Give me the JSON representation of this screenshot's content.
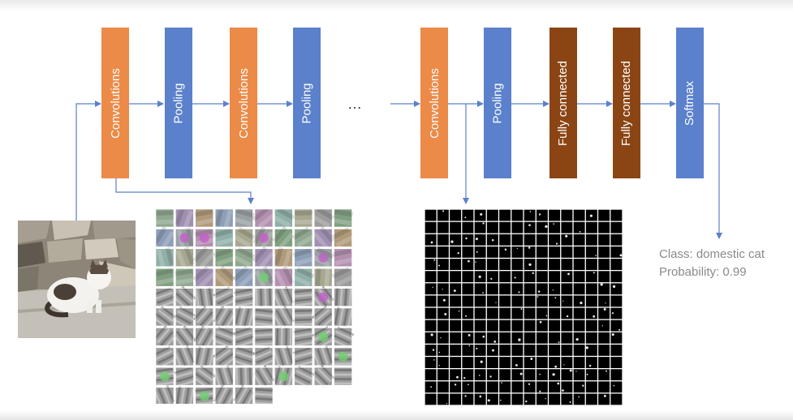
{
  "layers": [
    {
      "label": "Convolutions",
      "kind": "conv",
      "color": "#ec8a47"
    },
    {
      "label": "Pooling",
      "kind": "pool",
      "color": "#5b80cc"
    },
    {
      "label": "Convolutions",
      "kind": "conv",
      "color": "#ec8a47"
    },
    {
      "label": "Pooling",
      "kind": "pool",
      "color": "#5b80cc"
    },
    {
      "label": "Convolutions",
      "kind": "conv",
      "color": "#ec8a47"
    },
    {
      "label": "Pooling",
      "kind": "pool",
      "color": "#5b80cc"
    },
    {
      "label": "Fully connected",
      "kind": "fc",
      "color": "#8b4514"
    },
    {
      "label": "Fully connected",
      "kind": "fc",
      "color": "#8b4514"
    },
    {
      "label": "Softmax",
      "kind": "pool",
      "color": "#5b80cc"
    }
  ],
  "ellipsis": "…",
  "result": {
    "class_text": "Class: domestic cat",
    "probability_text": "Probability: 0.99"
  },
  "images": {
    "input": "cat-photo",
    "filters": "learned-filter-grid",
    "feature_maps": "feature-map-grid"
  },
  "colors": {
    "arrow": "#5b80cc",
    "text": "#8a8a8a"
  }
}
